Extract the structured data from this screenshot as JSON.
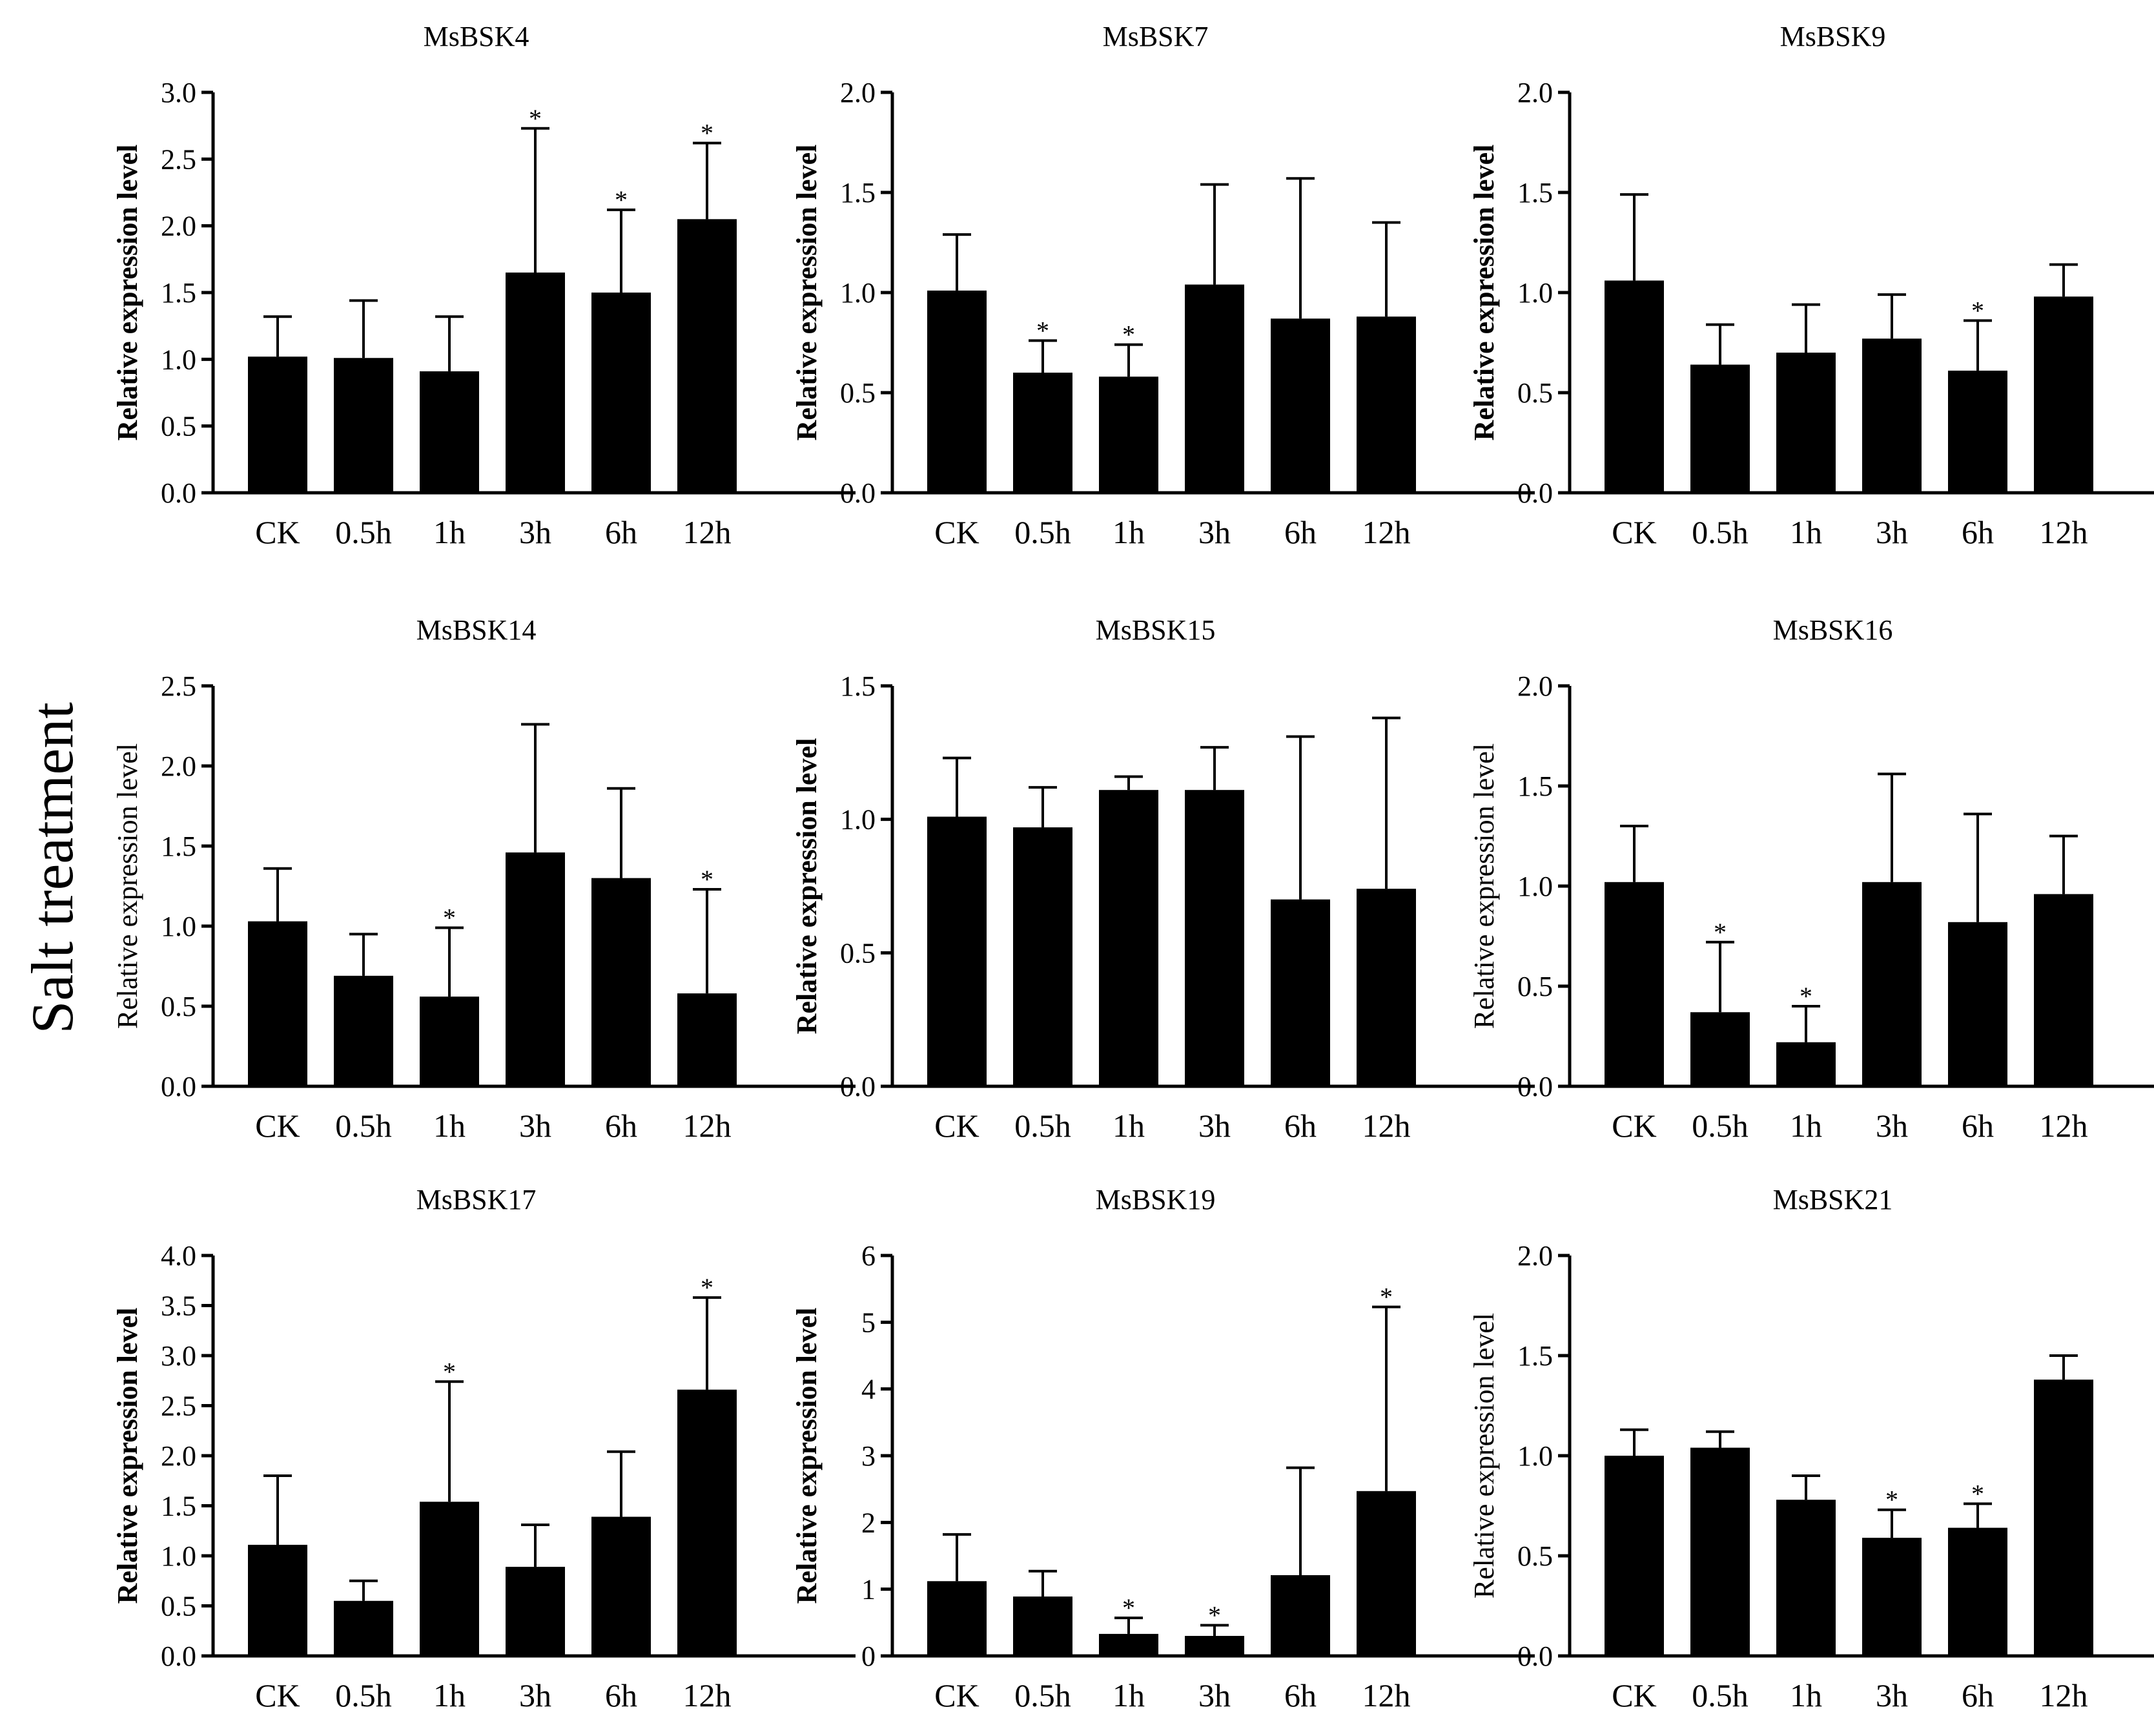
{
  "figure_label": "Salt treatment",
  "chart_data": [
    {
      "type": "bar",
      "title": "MsBSK4",
      "ylabel": "Relative expression level",
      "ylabel_bold": true,
      "categories": [
        "CK",
        "0.5h",
        "1h",
        "3h",
        "6h",
        "12h"
      ],
      "values": [
        1.02,
        1.01,
        0.91,
        1.65,
        1.5,
        2.05
      ],
      "errors": [
        0.3,
        0.43,
        0.41,
        1.08,
        0.62,
        0.57
      ],
      "significant": [
        false,
        false,
        false,
        true,
        true,
        true
      ],
      "ylim": [
        0,
        3.0
      ],
      "yticks": [
        "0.0",
        "0.5",
        "1.0",
        "1.5",
        "2.0",
        "2.5",
        "3.0"
      ]
    },
    {
      "type": "bar",
      "title": "MsBSK7",
      "ylabel": "Relative expression level",
      "ylabel_bold": true,
      "categories": [
        "CK",
        "0.5h",
        "1h",
        "3h",
        "6h",
        "12h"
      ],
      "values": [
        1.01,
        0.6,
        0.58,
        1.04,
        0.87,
        0.88
      ],
      "errors": [
        0.28,
        0.16,
        0.16,
        0.5,
        0.7,
        0.47
      ],
      "significant": [
        false,
        true,
        true,
        false,
        false,
        false
      ],
      "ylim": [
        0,
        2.0
      ],
      "yticks": [
        "0.0",
        "0.5",
        "1.0",
        "1.5",
        "2.0"
      ]
    },
    {
      "type": "bar",
      "title": "MsBSK9",
      "ylabel": "Relative expression level",
      "ylabel_bold": true,
      "categories": [
        "CK",
        "0.5h",
        "1h",
        "3h",
        "6h",
        "12h"
      ],
      "values": [
        1.06,
        0.64,
        0.7,
        0.77,
        0.61,
        0.98
      ],
      "errors": [
        0.43,
        0.2,
        0.24,
        0.22,
        0.25,
        0.16
      ],
      "significant": [
        false,
        false,
        false,
        false,
        true,
        false
      ],
      "ylim": [
        0,
        2.0
      ],
      "yticks": [
        "0.0",
        "0.5",
        "1.0",
        "1.5",
        "2.0"
      ]
    },
    {
      "type": "bar",
      "title": "MsBSK14",
      "ylabel": "Relative expression level",
      "ylabel_bold": false,
      "categories": [
        "CK",
        "0.5h",
        "1h",
        "3h",
        "6h",
        "12h"
      ],
      "values": [
        1.03,
        0.69,
        0.56,
        1.46,
        1.3,
        0.58
      ],
      "errors": [
        0.33,
        0.26,
        0.43,
        0.8,
        0.56,
        0.65
      ],
      "significant": [
        false,
        false,
        true,
        false,
        false,
        true
      ],
      "ylim": [
        0,
        2.5
      ],
      "yticks": [
        "0.0",
        "0.5",
        "1.0",
        "1.5",
        "2.0",
        "2.5"
      ]
    },
    {
      "type": "bar",
      "title": "MsBSK15",
      "ylabel": "Relative expression level",
      "ylabel_bold": true,
      "categories": [
        "CK",
        "0.5h",
        "1h",
        "3h",
        "6h",
        "12h"
      ],
      "values": [
        1.01,
        0.97,
        1.11,
        1.11,
        0.7,
        0.74
      ],
      "errors": [
        0.22,
        0.15,
        0.05,
        0.16,
        0.61,
        0.64
      ],
      "significant": [
        false,
        false,
        false,
        false,
        false,
        false
      ],
      "ylim": [
        0,
        1.5
      ],
      "yticks": [
        "0.0",
        "0.5",
        "1.0",
        "1.5"
      ]
    },
    {
      "type": "bar",
      "title": "MsBSK16",
      "ylabel": "Relative expression level",
      "ylabel_bold": false,
      "categories": [
        "CK",
        "0.5h",
        "1h",
        "3h",
        "6h",
        "12h"
      ],
      "values": [
        1.02,
        0.37,
        0.22,
        1.02,
        0.82,
        0.96
      ],
      "errors": [
        0.28,
        0.35,
        0.18,
        0.54,
        0.54,
        0.29
      ],
      "significant": [
        false,
        true,
        true,
        false,
        false,
        false
      ],
      "ylim": [
        0,
        2.0
      ],
      "yticks": [
        "0.0",
        "0.5",
        "1.0",
        "1.5",
        "2.0"
      ]
    },
    {
      "type": "bar",
      "title": "MsBSK17",
      "ylabel": "Relative expression level",
      "ylabel_bold": true,
      "categories": [
        "CK",
        "0.5h",
        "1h",
        "3h",
        "6h",
        "12h"
      ],
      "values": [
        1.11,
        0.55,
        1.54,
        0.89,
        1.39,
        2.66
      ],
      "errors": [
        0.69,
        0.2,
        1.2,
        0.42,
        0.65,
        0.92
      ],
      "significant": [
        false,
        false,
        true,
        false,
        false,
        true
      ],
      "ylim": [
        0,
        4.0
      ],
      "yticks": [
        "0.0",
        "0.5",
        "1.0",
        "1.5",
        "2.0",
        "2.5",
        "3.0",
        "3.5",
        "4.0"
      ]
    },
    {
      "type": "bar",
      "title": "MsBSK19",
      "ylabel": "Relative expression level",
      "ylabel_bold": true,
      "categories": [
        "CK",
        "0.5h",
        "1h",
        "3h",
        "6h",
        "12h"
      ],
      "values": [
        1.12,
        0.89,
        0.33,
        0.3,
        1.21,
        2.47
      ],
      "errors": [
        0.7,
        0.38,
        0.24,
        0.16,
        1.61,
        2.76
      ],
      "significant": [
        false,
        false,
        true,
        true,
        false,
        true
      ],
      "ylim": [
        0,
        6
      ],
      "yticks": [
        "0",
        "1",
        "2",
        "3",
        "4",
        "5",
        "6"
      ]
    },
    {
      "type": "bar",
      "title": "MsBSK21",
      "ylabel": "Relative expression level",
      "ylabel_bold": false,
      "categories": [
        "CK",
        "0.5h",
        "1h",
        "3h",
        "6h",
        "12h"
      ],
      "values": [
        1.0,
        1.04,
        0.78,
        0.59,
        0.64,
        1.38
      ],
      "errors": [
        0.13,
        0.08,
        0.12,
        0.14,
        0.12,
        0.12
      ],
      "significant": [
        false,
        false,
        false,
        true,
        true,
        false
      ],
      "ylim": [
        0,
        2.0
      ],
      "yticks": [
        "0.0",
        "0.5",
        "1.0",
        "1.5",
        "2.0"
      ]
    }
  ]
}
